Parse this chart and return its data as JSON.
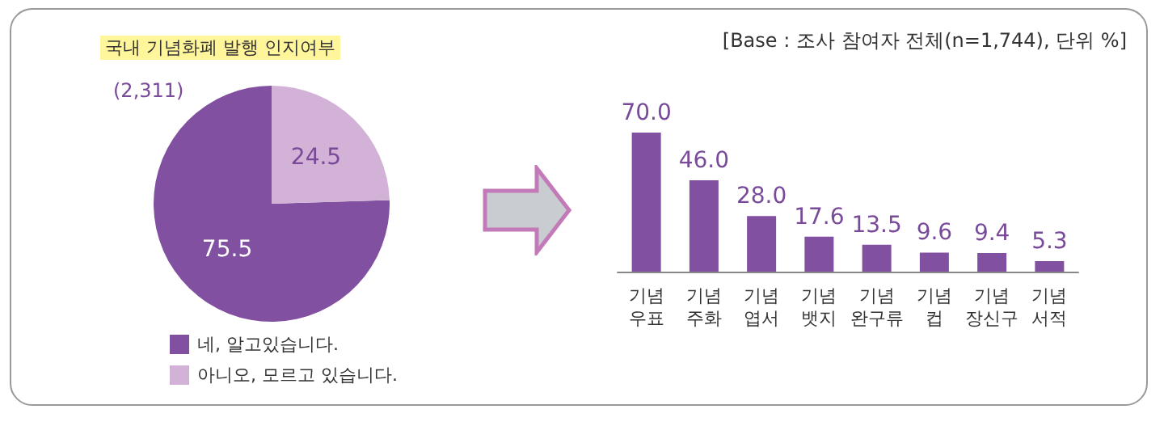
{
  "chart_data": [
    {
      "type": "pie",
      "title": "국내 기념화폐 발행 인지여부",
      "annotations": [
        "(2,311)"
      ],
      "categories": [
        "네, 알고있습니다.",
        "아니오, 모르고 있습니다."
      ],
      "values": [
        75.5,
        24.5
      ],
      "colors": [
        "#8250a0",
        "#d2b2d6"
      ],
      "legend": "bottom left",
      "data_labels": true
    },
    {
      "type": "bar",
      "annotations": [
        "[Base : 조사 참여자 전체(n=1,744), 단위 %]"
      ],
      "categories": [
        "기념 우표",
        "기념 주화",
        "기념 엽서",
        "기념 뱃지",
        "기념 완구류",
        "기념 컵",
        "기념 장신구",
        "기념 서적"
      ],
      "values": [
        70.0,
        46.0,
        28.0,
        17.6,
        13.5,
        9.6,
        9.4,
        5.3
      ],
      "value_labels": [
        "70.0",
        "46.0",
        "28.0",
        "17.6",
        "13.5",
        "9.6",
        "9.4",
        "5.3"
      ],
      "color": "#8250a0"
    }
  ]
}
